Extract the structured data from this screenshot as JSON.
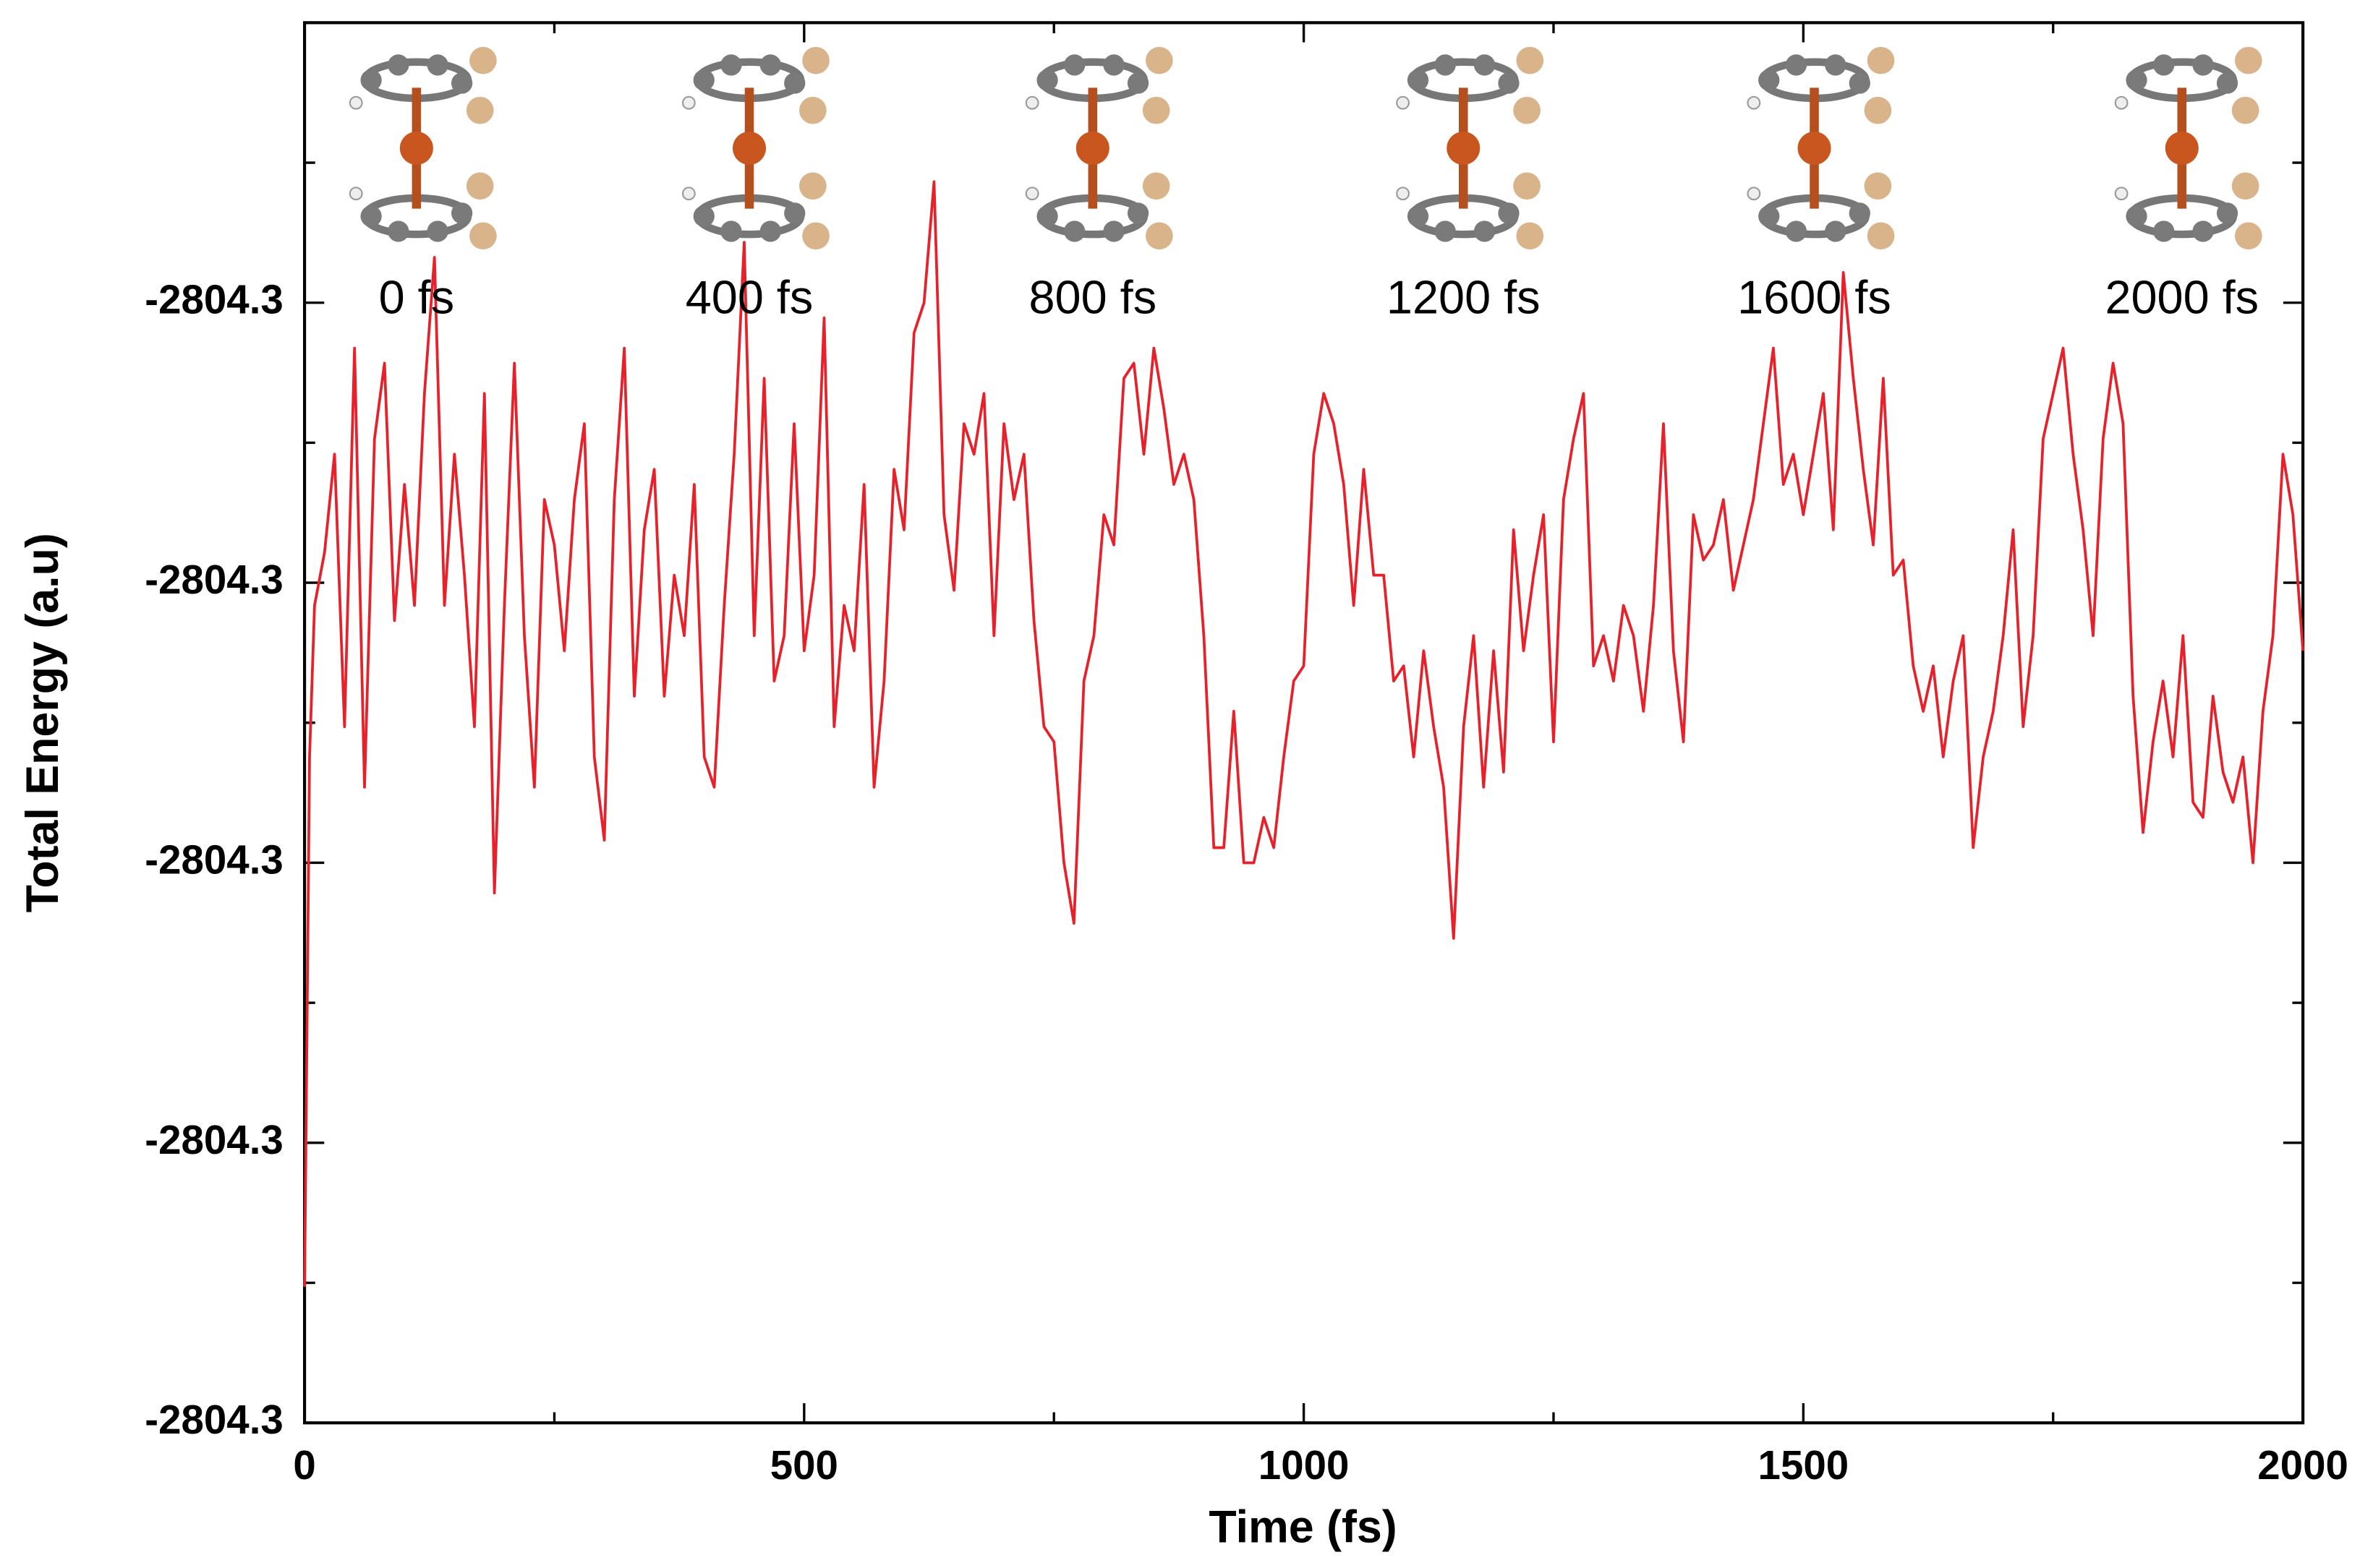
{
  "chart_data": {
    "type": "line",
    "xlabel": "Time (fs)",
    "ylabel": "Total Energy (a.u)",
    "annotations": [
      "0 fs",
      "400 fs",
      "800 fs",
      "1200 fs",
      "1600 fs",
      "2000 fs"
    ],
    "xlim": [
      0,
      2000
    ],
    "xticks": [
      0,
      500,
      1000,
      1500,
      2000
    ],
    "xminorticks": [
      250,
      750,
      1250,
      1750
    ],
    "ylim": [
      -2804.34,
      -2804.29
    ],
    "yticks": [
      {
        "value": -2804.34,
        "label": "-2804.3"
      },
      {
        "value": -2804.33,
        "label": "-2804.3"
      },
      {
        "value": -2804.32,
        "label": "-2804.3"
      },
      {
        "value": -2804.31,
        "label": "-2804.3"
      },
      {
        "value": -2804.3,
        "label": "-2804.3"
      }
    ],
    "yminorticks": [
      -2804.335,
      -2804.325,
      -2804.315,
      -2804.305,
      -2804.295
    ],
    "series": [
      {
        "color": "#e8202a",
        "x": [
          0,
          5,
          10,
          20,
          30,
          40,
          50,
          60,
          70,
          80,
          90,
          100,
          110,
          120,
          130,
          140,
          150,
          160,
          170,
          180,
          190,
          200,
          210,
          220,
          230,
          240,
          250,
          260,
          270,
          280,
          290,
          300,
          310,
          320,
          330,
          340,
          350,
          360,
          370,
          380,
          390,
          400,
          410,
          420,
          430,
          440,
          450,
          460,
          470,
          480,
          490,
          500,
          510,
          520,
          530,
          540,
          550,
          560,
          570,
          580,
          590,
          600,
          610,
          620,
          630,
          640,
          650,
          660,
          670,
          680,
          690,
          700,
          710,
          720,
          730,
          740,
          750,
          760,
          770,
          780,
          790,
          800,
          810,
          820,
          830,
          840,
          850,
          860,
          870,
          880,
          890,
          900,
          910,
          920,
          930,
          940,
          950,
          960,
          970,
          980,
          990,
          1000,
          1010,
          1020,
          1030,
          1040,
          1050,
          1060,
          1070,
          1080,
          1090,
          1100,
          1110,
          1120,
          1130,
          1140,
          1150,
          1160,
          1170,
          1180,
          1190,
          1200,
          1210,
          1220,
          1230,
          1240,
          1250,
          1260,
          1270,
          1280,
          1290,
          1300,
          1310,
          1320,
          1330,
          1340,
          1350,
          1360,
          1370,
          1380,
          1390,
          1400,
          1410,
          1420,
          1430,
          1440,
          1450,
          1460,
          1470,
          1480,
          1490,
          1500,
          1510,
          1520,
          1530,
          1540,
          1550,
          1560,
          1570,
          1580,
          1590,
          1600,
          1610,
          1620,
          1630,
          1640,
          1650,
          1660,
          1670,
          1680,
          1690,
          1700,
          1710,
          1720,
          1730,
          1740,
          1750,
          1760,
          1770,
          1780,
          1790,
          1800,
          1810,
          1820,
          1830,
          1840,
          1850,
          1860,
          1870,
          1880,
          1890,
          1900,
          1910,
          1920,
          1930,
          1940,
          1950,
          1960,
          1970,
          1980,
          1990,
          2000
        ],
        "values": [
          -2804.33514,
          -2804.31622,
          -2804.31081,
          -2804.30892,
          -2804.30541,
          -2804.31514,
          -2804.30162,
          -2804.3173,
          -2804.30486,
          -2804.30216,
          -2804.31135,
          -2804.30649,
          -2804.31081,
          -2804.30324,
          -2804.29838,
          -2804.31081,
          -2804.30541,
          -2804.30973,
          -2804.31514,
          -2804.30324,
          -2804.32108,
          -2804.31081,
          -2804.30216,
          -2804.31189,
          -2804.3173,
          -2804.30703,
          -2804.30865,
          -2804.31243,
          -2804.30703,
          -2804.30432,
          -2804.31622,
          -2804.31919,
          -2804.30703,
          -2804.30162,
          -2804.31405,
          -2804.30811,
          -2804.30595,
          -2804.31405,
          -2804.30973,
          -2804.31189,
          -2804.30649,
          -2804.31622,
          -2804.3173,
          -2804.31081,
          -2804.30541,
          -2804.29784,
          -2804.31189,
          -2804.3027,
          -2804.31351,
          -2804.31189,
          -2804.30432,
          -2804.31243,
          -2804.30973,
          -2804.30054,
          -2804.31514,
          -2804.31081,
          -2804.31243,
          -2804.30649,
          -2804.3173,
          -2804.31351,
          -2804.30595,
          -2804.30811,
          -2804.30108,
          -2804.3,
          -2804.29568,
          -2804.30757,
          -2804.31027,
          -2804.30432,
          -2804.30541,
          -2804.30324,
          -2804.31189,
          -2804.30432,
          -2804.30703,
          -2804.30541,
          -2804.31135,
          -2804.31514,
          -2804.31568,
          -2804.32,
          -2804.32216,
          -2804.31351,
          -2804.31189,
          -2804.30757,
          -2804.30865,
          -2804.3027,
          -2804.30216,
          -2804.30541,
          -2804.30162,
          -2804.30378,
          -2804.30649,
          -2804.30541,
          -2804.30703,
          -2804.31189,
          -2804.31946,
          -2804.31946,
          -2804.31459,
          -2804.32,
          -2804.32,
          -2804.31838,
          -2804.31946,
          -2804.31622,
          -2804.31351,
          -2804.31297,
          -2804.30541,
          -2804.30324,
          -2804.30432,
          -2804.30649,
          -2804.31081,
          -2804.30595,
          -2804.30973,
          -2804.30973,
          -2804.31351,
          -2804.31297,
          -2804.31622,
          -2804.31243,
          -2804.31514,
          -2804.3173,
          -2804.3227,
          -2804.31514,
          -2804.31189,
          -2804.3173,
          -2804.31243,
          -2804.31676,
          -2804.30811,
          -2804.31243,
          -2804.30973,
          -2804.30757,
          -2804.31568,
          -2804.30703,
          -2804.30486,
          -2804.30324,
          -2804.31297,
          -2804.31189,
          -2804.31351,
          -2804.31081,
          -2804.31189,
          -2804.31459,
          -2804.31081,
          -2804.30432,
          -2804.31243,
          -2804.31568,
          -2804.30757,
          -2804.30919,
          -2804.30865,
          -2804.30703,
          -2804.31027,
          -2804.30865,
          -2804.30703,
          -2804.30432,
          -2804.30162,
          -2804.30649,
          -2804.30541,
          -2804.30757,
          -2804.30541,
          -2804.30324,
          -2804.30811,
          -2804.29892,
          -2804.3027,
          -2804.30595,
          -2804.30865,
          -2804.3027,
          -2804.30973,
          -2804.30919,
          -2804.31297,
          -2804.31459,
          -2804.31297,
          -2804.31622,
          -2804.31351,
          -2804.31189,
          -2804.31946,
          -2804.31622,
          -2804.31459,
          -2804.31189,
          -2804.30811,
          -2804.31514,
          -2804.31189,
          -2804.30486,
          -2804.30324,
          -2804.30162,
          -2804.30541,
          -2804.30811,
          -2804.31189,
          -2804.30486,
          -2804.30216,
          -2804.30432,
          -2804.31405,
          -2804.31892,
          -2804.31568,
          -2804.31351,
          -2804.31622,
          -2804.31189,
          -2804.31784,
          -2804.31838,
          -2804.31405,
          -2804.31676,
          -2804.31784,
          -2804.31622,
          -2804.32,
          -2804.31459,
          -2804.31189,
          -2804.30541,
          -2804.30757,
          -2804.31243
        ]
      }
    ]
  }
}
